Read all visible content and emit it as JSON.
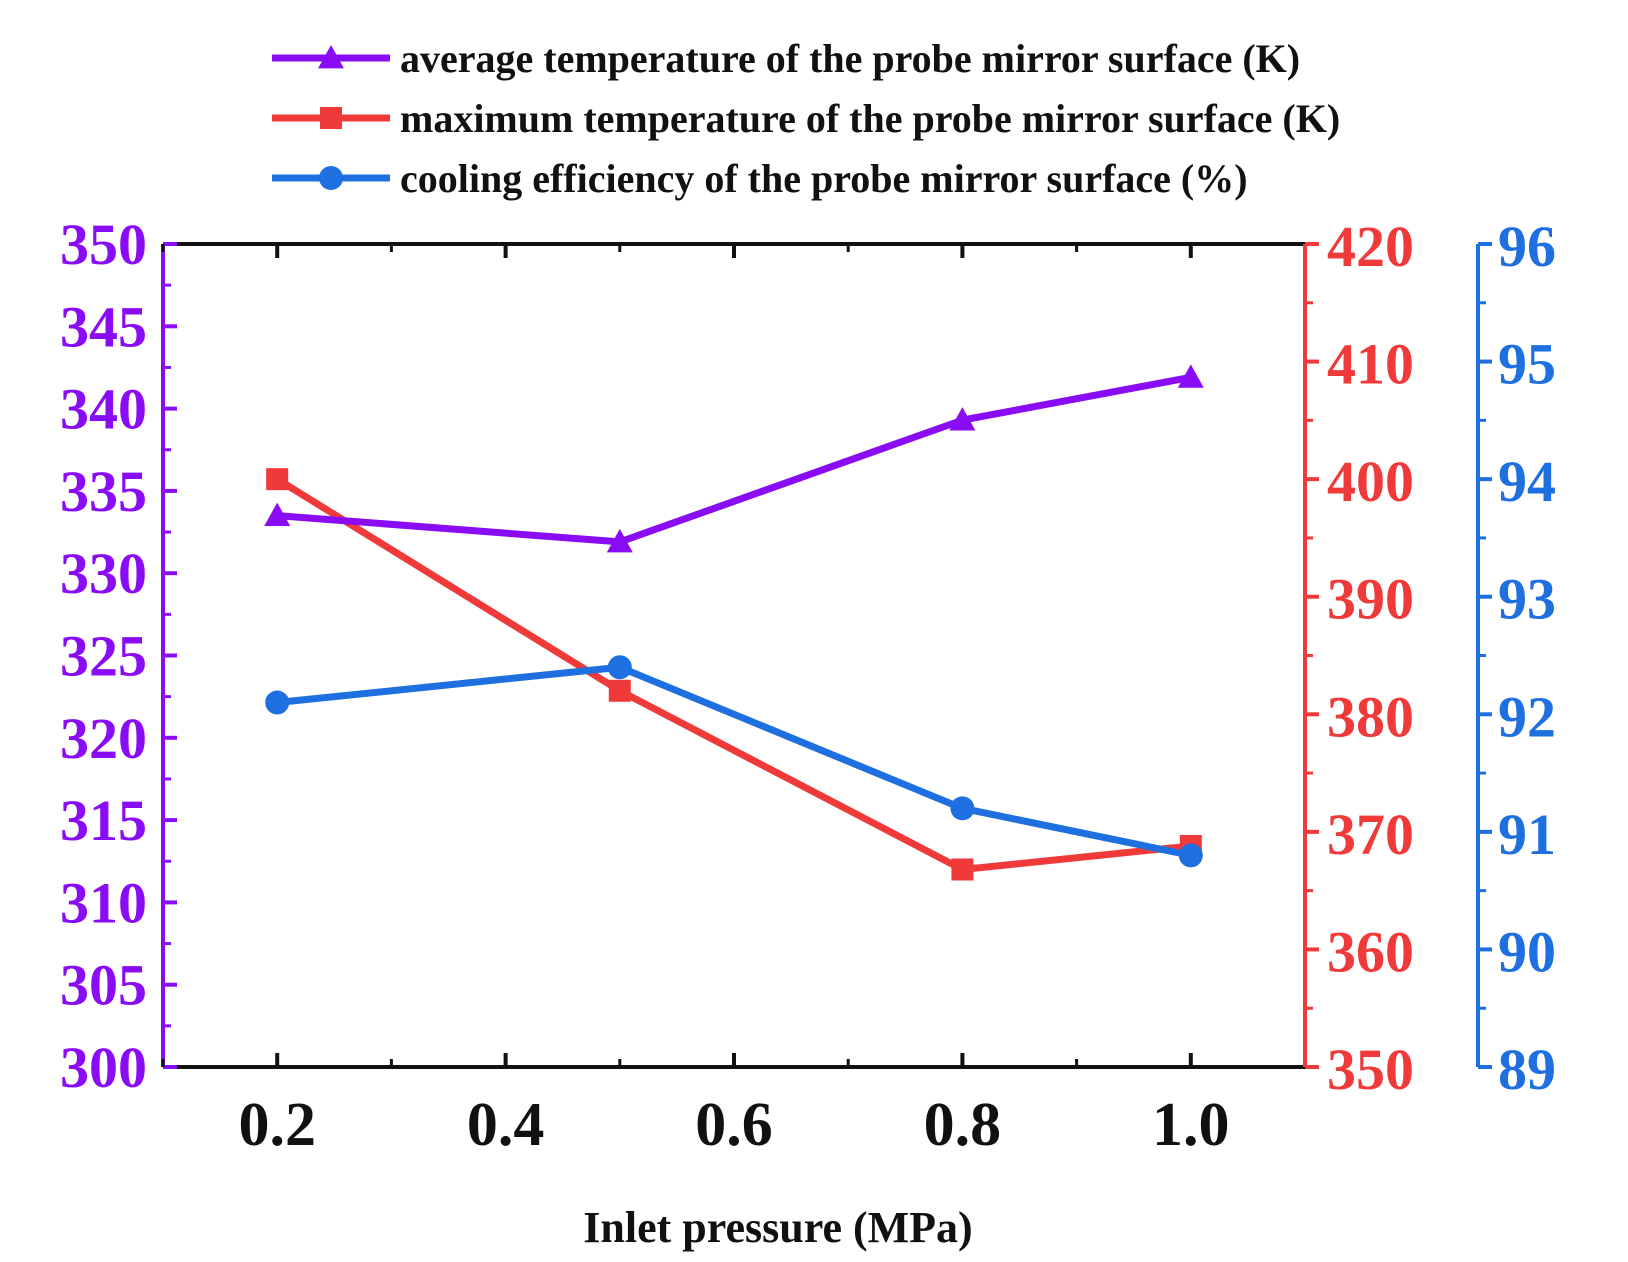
{
  "chart_data": {
    "type": "line",
    "title": "",
    "xlabel": "Inlet pressure (MPa)",
    "x": [
      0.2,
      0.5,
      0.8,
      1.0
    ],
    "xlim": [
      0.1,
      1.1
    ],
    "xticks": [
      0.2,
      0.4,
      0.6,
      0.8,
      1.0
    ],
    "xtick_labels": [
      "0.2",
      "0.4",
      "0.6",
      "0.8",
      "1.0"
    ],
    "axes": [
      {
        "id": "left",
        "color": "#8a0cf5",
        "range": [
          300,
          350
        ],
        "ticks": [
          300,
          305,
          310,
          315,
          320,
          325,
          330,
          335,
          340,
          345,
          350
        ],
        "tick_labels": [
          "300",
          "305",
          "310",
          "315",
          "320",
          "325",
          "330",
          "335",
          "340",
          "345",
          "350"
        ]
      },
      {
        "id": "right1",
        "color": "#f03a3a",
        "range": [
          350,
          420
        ],
        "ticks": [
          350,
          360,
          370,
          380,
          390,
          400,
          410,
          420
        ],
        "tick_labels": [
          "350",
          "360",
          "370",
          "380",
          "390",
          "400",
          "410",
          "420"
        ]
      },
      {
        "id": "right2",
        "color": "#1e6fe0",
        "range": [
          89,
          96
        ],
        "ticks": [
          89,
          90,
          91,
          92,
          93,
          94,
          95,
          96
        ],
        "tick_labels": [
          "89",
          "90",
          "91",
          "92",
          "93",
          "94",
          "95",
          "96"
        ]
      }
    ],
    "series": [
      {
        "name": "average temperature of the probe mirror surface (K)",
        "axis": "left",
        "marker": "triangle",
        "color": "#8a0cf5",
        "values": [
          333.5,
          331.9,
          339.3,
          341.9
        ]
      },
      {
        "name": "maximum temperature of the probe mirror surface (K)",
        "axis": "right1",
        "marker": "square",
        "color": "#f03a3a",
        "values": [
          400.0,
          382.0,
          366.8,
          368.8
        ]
      },
      {
        "name": "cooling efficiency of the probe mirror surface (%)",
        "axis": "right2",
        "marker": "circle",
        "color": "#1e6fe0",
        "values": [
          92.1,
          92.4,
          91.2,
          90.8
        ]
      }
    ],
    "legend": "top"
  }
}
